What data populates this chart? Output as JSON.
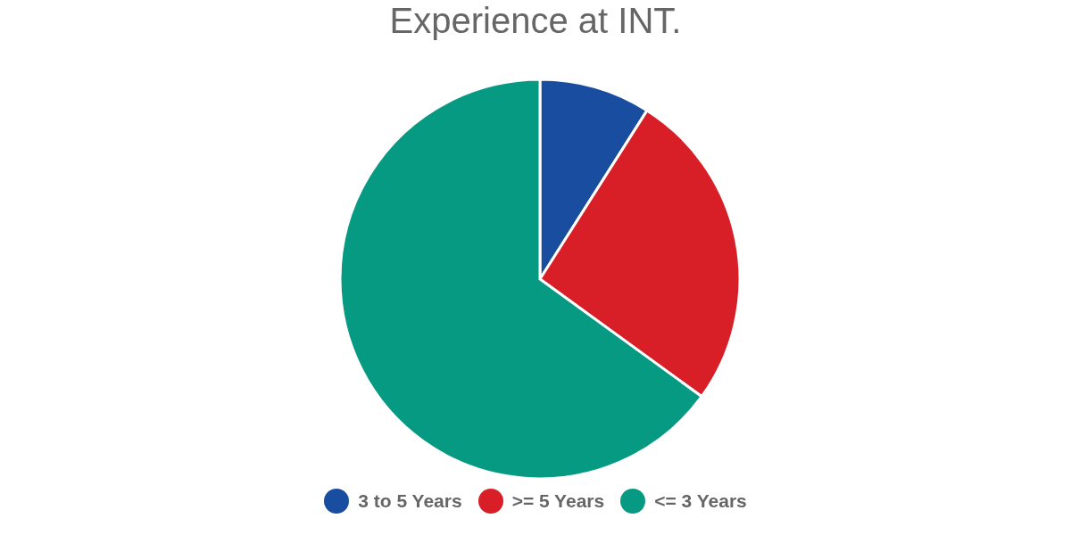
{
  "chart_data": {
    "type": "pie",
    "title": "Experience at INT.",
    "categories": [
      "3 to 5 Years",
      ">= 5 Years",
      "<= 3 Years"
    ],
    "values": [
      9,
      26,
      65
    ],
    "colors": [
      "#194da0",
      "#d81f27",
      "#079a82"
    ],
    "legend": "bottom"
  }
}
